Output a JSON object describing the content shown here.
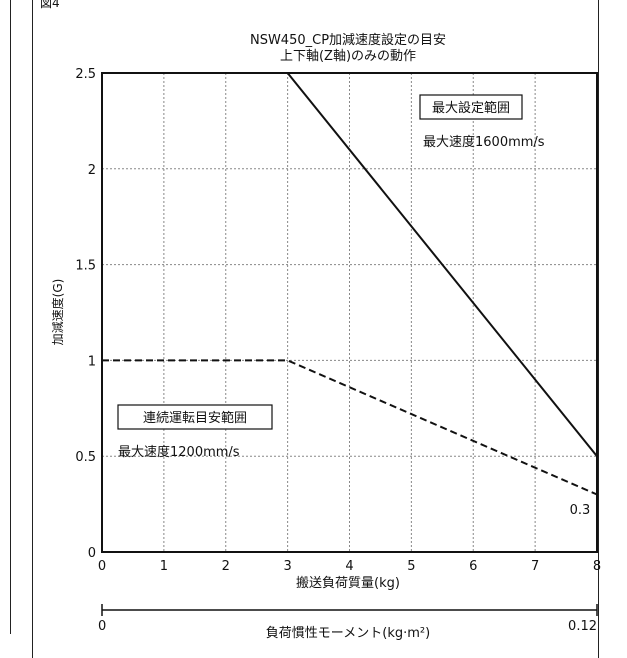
{
  "corner_mark": "図4",
  "chart_data": {
    "type": "line",
    "title": "NSW450_CP加減速度設定の目安",
    "subtitle": "上下軸(Z軸)のみの動作",
    "xlabel": "搬送負荷質量(kg)",
    "ylabel": "加減速度(G)",
    "xlim": [
      0,
      8
    ],
    "ylim": [
      0,
      2.5
    ],
    "x_ticks": [
      "0",
      "1",
      "2",
      "3",
      "4",
      "5",
      "6",
      "7",
      "8"
    ],
    "y_ticks": [
      "0",
      "0.5",
      "1",
      "1.5",
      "2",
      "2.5"
    ],
    "grid": true,
    "series": [
      {
        "name": "最大設定範囲",
        "style": "solid",
        "x": [
          0,
          3,
          8
        ],
        "y": [
          2.5,
          2.5,
          0.5
        ]
      },
      {
        "name": "連続運転目安範囲",
        "style": "dashed",
        "x": [
          0,
          3,
          8
        ],
        "y": [
          1.0,
          1.0,
          0.3
        ]
      }
    ],
    "annotations": {
      "max_box": "最大設定範囲",
      "max_speed": "最大速度1600mm/s",
      "cont_box": "連続運転目安範囲",
      "cont_speed": "最大速度1200mm/s",
      "end_value": "0.3"
    },
    "secondary_axis": {
      "label": "負荷慣性モーメント(kg·m²)",
      "min_label": "0",
      "max_label": "0.12"
    },
    "colors": {
      "line": "#111111",
      "grid": "#888888"
    }
  }
}
